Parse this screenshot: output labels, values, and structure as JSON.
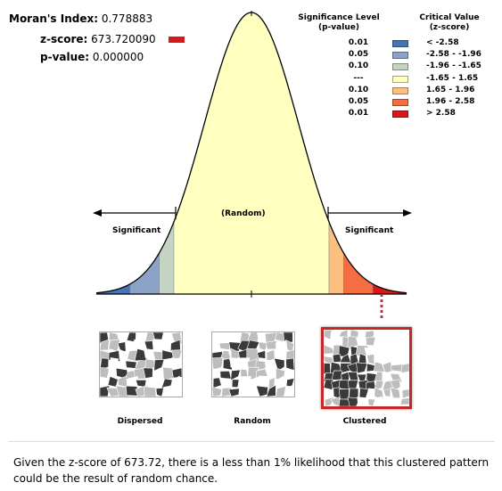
{
  "stats": {
    "moran_label": "Moran's Index:",
    "moran_value": "0.778883",
    "z_label": "z-score:",
    "z_value": "673.720090",
    "p_label": "p-value:",
    "p_value": "0.000000",
    "z_indicator_color": "#d7191c"
  },
  "legend": {
    "header_significance": [
      "Significance Level",
      "(p-value)"
    ],
    "header_critical": [
      "Critical Value",
      "(z-score)"
    ],
    "rows": [
      {
        "p": "0.01",
        "z": "< -2.58",
        "color": "#4575b4"
      },
      {
        "p": "0.05",
        "z": "-2.58 - -1.96",
        "color": "#8ba3c7"
      },
      {
        "p": "0.10",
        "z": "-1.96 - -1.65",
        "color": "#c5d3c2"
      },
      {
        "p": "---",
        "z": "-1.65 - 1.65",
        "color": "#ffffbf"
      },
      {
        "p": "0.10",
        "z": "1.65 - 1.96",
        "color": "#fdbf80"
      },
      {
        "p": "0.05",
        "z": "1.96 - 2.58",
        "color": "#f46d43"
      },
      {
        "p": "0.01",
        "z": "> 2.58",
        "color": "#d7191c"
      }
    ]
  },
  "labels": {
    "random": "(Random)",
    "significant_left": "Significant",
    "significant_right": "Significant"
  },
  "maps": {
    "dispersed": "Dispersed",
    "random": "Random",
    "clustered": "Clustered",
    "selected": "clustered",
    "selected_color": "#c62828"
  },
  "summary": "Given the z-score of 673.72, there is a less than 1% likelihood that this clustered pattern could be the result of random chance.",
  "chart_data": {
    "type": "area",
    "title": "",
    "xlabel": "",
    "ylabel": "",
    "distribution": "standard normal",
    "xlim": [
      -3.3,
      3.3
    ],
    "regions": [
      {
        "from": -3.3,
        "to": -2.58,
        "color": "#4575b4"
      },
      {
        "from": -2.58,
        "to": -1.96,
        "color": "#8ba3c7"
      },
      {
        "from": -1.96,
        "to": -1.65,
        "color": "#c5d3c2"
      },
      {
        "from": -1.65,
        "to": 1.65,
        "color": "#ffffbf"
      },
      {
        "from": 1.65,
        "to": 1.96,
        "color": "#fdbf80"
      },
      {
        "from": 1.96,
        "to": 2.58,
        "color": "#f46d43"
      },
      {
        "from": 2.58,
        "to": 3.3,
        "color": "#d7191c"
      }
    ],
    "observed_z": 673.72,
    "observed_region": "> 2.58"
  }
}
